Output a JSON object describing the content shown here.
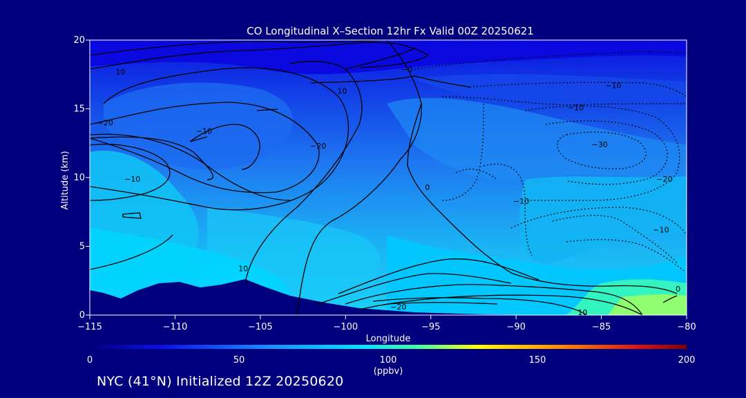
{
  "chart_data": {
    "type": "contour",
    "title": "CO Longitudinal X–Section 12hr  Fx Valid 00Z 20250621",
    "xlabel": "Longitude",
    "ylabel": "Altitude (km)",
    "xlim": [
      -115,
      -80
    ],
    "ylim": [
      0,
      20
    ],
    "x_ticks": [
      "−115",
      "−110",
      "−105",
      "−100",
      "−95",
      "−90",
      "−85",
      "−80"
    ],
    "x_tick_values": [
      -115,
      -110,
      -105,
      -100,
      -95,
      -90,
      -85,
      -80
    ],
    "y_ticks": [
      "0",
      "5",
      "10",
      "15",
      "20"
    ],
    "y_tick_values": [
      0,
      5,
      10,
      15,
      20
    ],
    "filled_field": "CO concentration (ppbv)",
    "contour_field": "CO difference (ppbv), dotted = negative",
    "contour_labels": [
      {
        "text": "10",
        "x": -113.2,
        "y": 17.7
      },
      {
        "text": "−20",
        "x": -114.1,
        "y": 14.0
      },
      {
        "text": "−10",
        "x": -108.3,
        "y": 13.4
      },
      {
        "text": "−20",
        "x": -101.6,
        "y": 12.3
      },
      {
        "text": "10",
        "x": -100.2,
        "y": 16.3
      },
      {
        "text": "−0",
        "x": -96.4,
        "y": 17.9
      },
      {
        "text": "−10",
        "x": -112.5,
        "y": 9.9
      },
      {
        "text": "10",
        "x": -106.0,
        "y": 3.4
      },
      {
        "text": "0",
        "x": -95.2,
        "y": 9.3
      },
      {
        "text": "−10",
        "x": -84.3,
        "y": 16.7
      },
      {
        "text": "−10",
        "x": -86.5,
        "y": 15.1
      },
      {
        "text": "−30",
        "x": -85.1,
        "y": 12.4
      },
      {
        "text": "−20",
        "x": -81.3,
        "y": 9.9
      },
      {
        "text": "−10",
        "x": -89.7,
        "y": 8.3
      },
      {
        "text": "−10",
        "x": -81.5,
        "y": 6.2
      },
      {
        "text": "0",
        "x": -80.5,
        "y": 1.9
      },
      {
        "text": "−20",
        "x": -96.9,
        "y": 0.6
      },
      {
        "text": "10",
        "x": -86.1,
        "y": 0.2
      }
    ],
    "colorbar": {
      "min": 0,
      "max": 200,
      "ticks": [
        "0",
        "50",
        "100",
        "150",
        "200"
      ],
      "tick_values": [
        0,
        50,
        100,
        150,
        200
      ],
      "units": "(ppbv)",
      "colors": [
        "#0c0ce8",
        "#1a48ee",
        "#1e90ff",
        "#00d8ff",
        "#00ffa0",
        "#ffff00",
        "#ff8000",
        "#d01010",
        "#7f0000"
      ]
    },
    "grid": false
  },
  "footer": "NYC (41°N) Initialized 12Z 20250620"
}
